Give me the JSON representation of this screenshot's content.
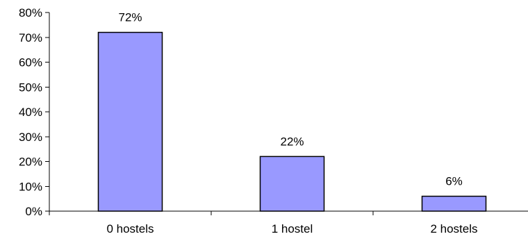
{
  "chart_data": {
    "type": "bar",
    "title": "",
    "xlabel": "",
    "ylabel": "",
    "categories": [
      "0 hostels",
      "1 hostel",
      "2 hostels"
    ],
    "values": [
      72,
      22,
      6
    ],
    "data_labels": [
      "72%",
      "22%",
      "6%"
    ],
    "ylim": [
      0,
      80
    ],
    "yticks": [
      0,
      10,
      20,
      30,
      40,
      50,
      60,
      70,
      80
    ],
    "ytick_labels": [
      "0%",
      "10%",
      "20%",
      "30%",
      "40%",
      "50%",
      "60%",
      "70%",
      "80%"
    ],
    "bar_color": "#9999ff",
    "grid": false,
    "legend": "none"
  }
}
